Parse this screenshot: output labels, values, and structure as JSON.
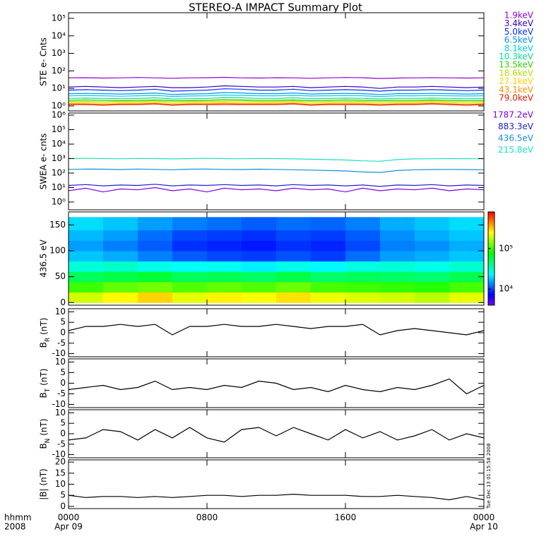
{
  "title": "STEREO-A IMPACT Summary Plot",
  "x_label": "hhmm",
  "x_sublabel": "2008",
  "xlim": [
    0,
    24
  ],
  "xticks": [
    {
      "value": 0,
      "label": "0000",
      "date": "Apr 09"
    },
    {
      "value": 8,
      "label": "0800"
    },
    {
      "value": 16,
      "label": "1600"
    },
    {
      "value": 24,
      "label": "0000",
      "date": "Apr 10"
    }
  ],
  "timestamp": "Tue Dec 13 01:15:58 2008",
  "chart_data": [
    {
      "type": "line",
      "ylabel": "STE e- Cnts",
      "log": true,
      "ylim": [
        0.52,
        210000
      ],
      "yticks": [
        {
          "value": 1,
          "label": "10⁰"
        },
        {
          "value": 10,
          "label": "10¹"
        },
        {
          "value": 100,
          "label": "10²"
        },
        {
          "value": 1000,
          "label": "10³"
        },
        {
          "value": 10000,
          "label": "10⁴"
        },
        {
          "value": 100000,
          "label": "10⁵"
        }
      ],
      "x": [
        0,
        1,
        2,
        3,
        4,
        5,
        6,
        7,
        8,
        9,
        10,
        11,
        12,
        13,
        14,
        15,
        16,
        17,
        18,
        19,
        20,
        21,
        22,
        23,
        24
      ],
      "series": [
        {
          "name": "1.9keV",
          "color": "#9400d3",
          "values": [
            40,
            41,
            39,
            40,
            42,
            40,
            38,
            40,
            41,
            43,
            40,
            39,
            41,
            40,
            38,
            40,
            42,
            41,
            37,
            39,
            40,
            41,
            40,
            39,
            40
          ]
        },
        {
          "name": "3.4keV",
          "color": "#3a00c8",
          "values": [
            12,
            13,
            12,
            11,
            12,
            13,
            11,
            11,
            12,
            14,
            13,
            12,
            12,
            13,
            11,
            12,
            13,
            12,
            10,
            12,
            12,
            13,
            12,
            11,
            12
          ]
        },
        {
          "name": "5.0keV",
          "color": "#0030ff",
          "values": [
            8,
            8.5,
            8,
            7.5,
            8,
            9,
            7,
            7.5,
            8,
            9.5,
            9,
            8,
            8,
            9,
            7.5,
            8,
            8.5,
            8,
            7,
            8,
            8,
            8.5,
            8,
            7.5,
            8
          ]
        },
        {
          "name": "6.5keV",
          "color": "#0090ff",
          "values": [
            5,
            5.2,
            5,
            4.8,
            5,
            5.5,
            4.5,
            4.8,
            5,
            5.8,
            5.5,
            5,
            5,
            5.5,
            4.8,
            5,
            5.2,
            5,
            4.5,
            5,
            5,
            5.2,
            5,
            4.8,
            5
          ]
        },
        {
          "name": "8.1keV",
          "color": "#00d0e0",
          "values": [
            3.8,
            3.9,
            3.8,
            3.6,
            3.8,
            4,
            3.5,
            3.7,
            3.8,
            4.2,
            4,
            3.8,
            3.8,
            4,
            3.7,
            3.8,
            3.9,
            3.8,
            3.5,
            3.8,
            3.8,
            3.9,
            3.8,
            3.7,
            3.8
          ]
        },
        {
          "name": "10.3keV",
          "color": "#00e090",
          "values": [
            2.7,
            2.8,
            2.7,
            2.6,
            2.7,
            2.9,
            2.5,
            2.6,
            2.7,
            3,
            2.9,
            2.7,
            2.7,
            2.9,
            2.6,
            2.7,
            2.8,
            2.7,
            2.5,
            2.7,
            2.7,
            2.8,
            2.7,
            2.6,
            2.7
          ]
        },
        {
          "name": "13.5keV",
          "color": "#30d000",
          "values": [
            2.1,
            2.2,
            2.1,
            2,
            2.1,
            2.2,
            2,
            2,
            2.1,
            2.3,
            2.2,
            2.1,
            2.1,
            2.2,
            2,
            2.1,
            2.2,
            2.1,
            2,
            2.1,
            2.1,
            2.2,
            2.1,
            2,
            2.1
          ]
        },
        {
          "name": "18.6keV",
          "color": "#b0e000",
          "values": [
            1.8,
            1.8,
            1.7,
            1.8,
            1.8,
            1.9,
            1.7,
            1.8,
            1.8,
            1.9,
            1.9,
            1.8,
            1.8,
            1.9,
            1.7,
            1.8,
            1.8,
            1.8,
            1.7,
            1.8,
            1.8,
            1.9,
            1.8,
            1.7,
            1.8
          ]
        },
        {
          "name": "27.1keV",
          "color": "#ffd000",
          "values": [
            1.5,
            1.5,
            1.4,
            1.5,
            1.5,
            1.6,
            1.4,
            1.5,
            1.5,
            1.6,
            1.5,
            1.5,
            1.5,
            1.6,
            1.4,
            1.5,
            1.5,
            1.5,
            1.4,
            1.5,
            1.5,
            1.6,
            1.5,
            1.4,
            1.5
          ]
        },
        {
          "name": "43.1keV",
          "color": "#ff9000",
          "values": [
            1.3,
            1.3,
            1.2,
            1.3,
            1.3,
            1.4,
            1.2,
            1.3,
            1.3,
            1.4,
            1.3,
            1.3,
            1.3,
            1.4,
            1.2,
            1.3,
            1.3,
            1.3,
            1.2,
            1.3,
            1.3,
            1.4,
            1.3,
            1.2,
            1.3
          ]
        },
        {
          "name": "79.0keV",
          "color": "#e02000",
          "values": [
            1.2,
            1.2,
            1.1,
            1.2,
            1.2,
            1.3,
            1.1,
            1.2,
            1.2,
            1.2,
            1.2,
            1.2,
            1.2,
            1.3,
            1.1,
            1.2,
            1.2,
            1.2,
            1.1,
            1.2,
            1.2,
            1.3,
            1.2,
            1.1,
            1.2
          ]
        }
      ]
    },
    {
      "type": "line",
      "ylabel": "SWEA e- cnts",
      "log": true,
      "ylim": [
        0.29,
        1400000
      ],
      "yticks": [
        {
          "value": 1,
          "label": "10⁰"
        },
        {
          "value": 10,
          "label": "10¹"
        },
        {
          "value": 100,
          "label": "10²"
        },
        {
          "value": 1000,
          "label": "10³"
        },
        {
          "value": 10000,
          "label": "10⁴"
        },
        {
          "value": 100000,
          "label": "10⁵"
        },
        {
          "value": 1000000,
          "label": "10⁶"
        }
      ],
      "x": [
        0,
        1,
        2,
        3,
        4,
        5,
        6,
        7,
        8,
        9,
        10,
        11,
        12,
        13,
        14,
        15,
        16,
        17,
        18,
        19,
        20,
        21,
        22,
        23,
        24
      ],
      "series": [
        {
          "name": "1787.2eV",
          "color": "#8000e0",
          "values": [
            6,
            9,
            5,
            8,
            7,
            10,
            6,
            8,
            5,
            9,
            7,
            8,
            6,
            9,
            7,
            8,
            5,
            9,
            6,
            8,
            7,
            9,
            6,
            8,
            7
          ]
        },
        {
          "name": "883.3eV",
          "color": "#2020d0",
          "values": [
            14,
            16,
            13,
            15,
            14,
            17,
            13,
            15,
            14,
            16,
            14,
            15,
            13,
            16,
            14,
            15,
            13,
            15,
            12,
            15,
            14,
            16,
            13,
            15,
            14
          ]
        },
        {
          "name": "436.5eV",
          "color": "#1090e0",
          "values": [
            180,
            190,
            185,
            175,
            190,
            180,
            170,
            185,
            190,
            180,
            175,
            185,
            180,
            170,
            160,
            150,
            140,
            120,
            110,
            150,
            170,
            175,
            180,
            175,
            170
          ]
        },
        {
          "name": "215.8eV",
          "color": "#20e0c0",
          "values": [
            1000,
            1050,
            1000,
            980,
            1020,
            1000,
            950,
            1000,
            1030,
            1000,
            980,
            1010,
            1000,
            960,
            900,
            850,
            800,
            700,
            650,
            850,
            950,
            980,
            1000,
            990,
            980
          ]
        }
      ]
    },
    {
      "type": "heatmap",
      "ylabel": "436.5 eV",
      "ylim": [
        -5,
        175
      ],
      "yticks": [
        0,
        50,
        100,
        150
      ],
      "colormap": "rainbow",
      "clim": [
        4000,
        800000
      ],
      "cticks": [
        {
          "value": 10000,
          "label": "10⁴"
        },
        {
          "value": 100000,
          "label": "10⁵"
        }
      ],
      "x_bins": [
        0,
        2,
        4,
        6,
        8,
        10,
        12,
        14,
        16,
        18,
        20,
        22,
        24
      ],
      "y_bins": [
        0,
        20,
        40,
        60,
        80,
        100,
        120,
        140,
        165
      ],
      "z": [
        [
          200000,
          250000,
          300000,
          220000,
          260000,
          240000,
          280000,
          230000,
          210000,
          200000,
          180000,
          220000
        ],
        [
          100000,
          120000,
          130000,
          110000,
          120000,
          110000,
          125000,
          105000,
          100000,
          95000,
          90000,
          105000
        ],
        [
          50000,
          55000,
          60000,
          50000,
          52000,
          48000,
          55000,
          47000,
          50000,
          48000,
          45000,
          52000
        ],
        [
          28000,
          30000,
          26000,
          24000,
          25000,
          22000,
          26000,
          23000,
          27000,
          28000,
          26000,
          29000
        ],
        [
          18000,
          16000,
          13000,
          11000,
          10000,
          9500,
          10500,
          9500,
          12000,
          15000,
          16000,
          18000
        ],
        [
          15000,
          13000,
          11000,
          9000,
          8500,
          8000,
          9000,
          8500,
          10000,
          13000,
          14000,
          16000
        ],
        [
          17000,
          15000,
          12000,
          10000,
          9500,
          9000,
          10000,
          9500,
          11000,
          14000,
          16000,
          18000
        ],
        [
          20000,
          18000,
          15000,
          13000,
          12000,
          11000,
          12000,
          11500,
          13000,
          16000,
          18000,
          20000
        ]
      ]
    },
    {
      "type": "line",
      "ylabel": "BR (nT)",
      "ylim": [
        -11.5,
        11.5
      ],
      "yticks": [
        -10,
        -5,
        0,
        5,
        10
      ],
      "color": "#000000",
      "x": [
        0,
        1,
        2,
        3,
        4,
        5,
        6,
        7,
        8,
        9,
        10,
        11,
        12,
        13,
        14,
        15,
        16,
        17,
        18,
        19,
        20,
        21,
        22,
        23,
        24
      ],
      "values": [
        1,
        3,
        3,
        4,
        3,
        4,
        -1,
        3,
        3,
        4,
        3,
        3,
        4,
        3,
        2,
        3,
        3,
        4,
        -1,
        1,
        2,
        1,
        0,
        -1,
        1
      ]
    },
    {
      "type": "line",
      "ylabel": "BT (nT)",
      "ylim": [
        -11.5,
        11.5
      ],
      "yticks": [
        -10,
        -5,
        0,
        5,
        10
      ],
      "color": "#000000",
      "x": [
        0,
        1,
        2,
        3,
        4,
        5,
        6,
        7,
        8,
        9,
        10,
        11,
        12,
        13,
        14,
        15,
        16,
        17,
        18,
        19,
        20,
        21,
        22,
        23,
        24
      ],
      "values": [
        -3,
        -2,
        -1,
        -3,
        -2,
        1,
        -3,
        -2,
        -3,
        -1,
        -2,
        1,
        0,
        -3,
        -2,
        -4,
        -1,
        -3,
        -4,
        -2,
        -3,
        -1,
        2,
        -5,
        -1
      ]
    },
    {
      "type": "line",
      "ylabel": "BN (nT)",
      "ylim": [
        -11.5,
        11.5
      ],
      "yticks": [
        -10,
        -5,
        0,
        5,
        10
      ],
      "color": "#000000",
      "x": [
        0,
        1,
        2,
        3,
        4,
        5,
        6,
        7,
        8,
        9,
        10,
        11,
        12,
        13,
        14,
        15,
        16,
        17,
        18,
        19,
        20,
        21,
        22,
        23,
        24
      ],
      "values": [
        -3,
        -2,
        2,
        1,
        -3,
        2,
        -2,
        3,
        -2,
        -4,
        2,
        3,
        -1,
        3,
        0,
        -3,
        2,
        -2,
        1,
        -3,
        -1,
        2,
        -3,
        0,
        -2
      ]
    },
    {
      "type": "line",
      "ylabel": "|B| (nT)",
      "ylim": [
        -1,
        21
      ],
      "yticks": [
        0,
        5,
        10,
        15,
        20
      ],
      "color": "#000000",
      "x": [
        0,
        1,
        2,
        3,
        4,
        5,
        6,
        7,
        8,
        9,
        10,
        11,
        12,
        13,
        14,
        15,
        16,
        17,
        18,
        19,
        20,
        21,
        22,
        23,
        24
      ],
      "values": [
        5,
        4,
        4.5,
        4.5,
        4,
        4.5,
        4,
        4.5,
        5,
        5,
        4.5,
        5,
        5,
        5.5,
        5,
        5,
        5,
        4.5,
        4.5,
        5,
        4.5,
        4,
        3,
        4.5,
        3
      ]
    }
  ]
}
